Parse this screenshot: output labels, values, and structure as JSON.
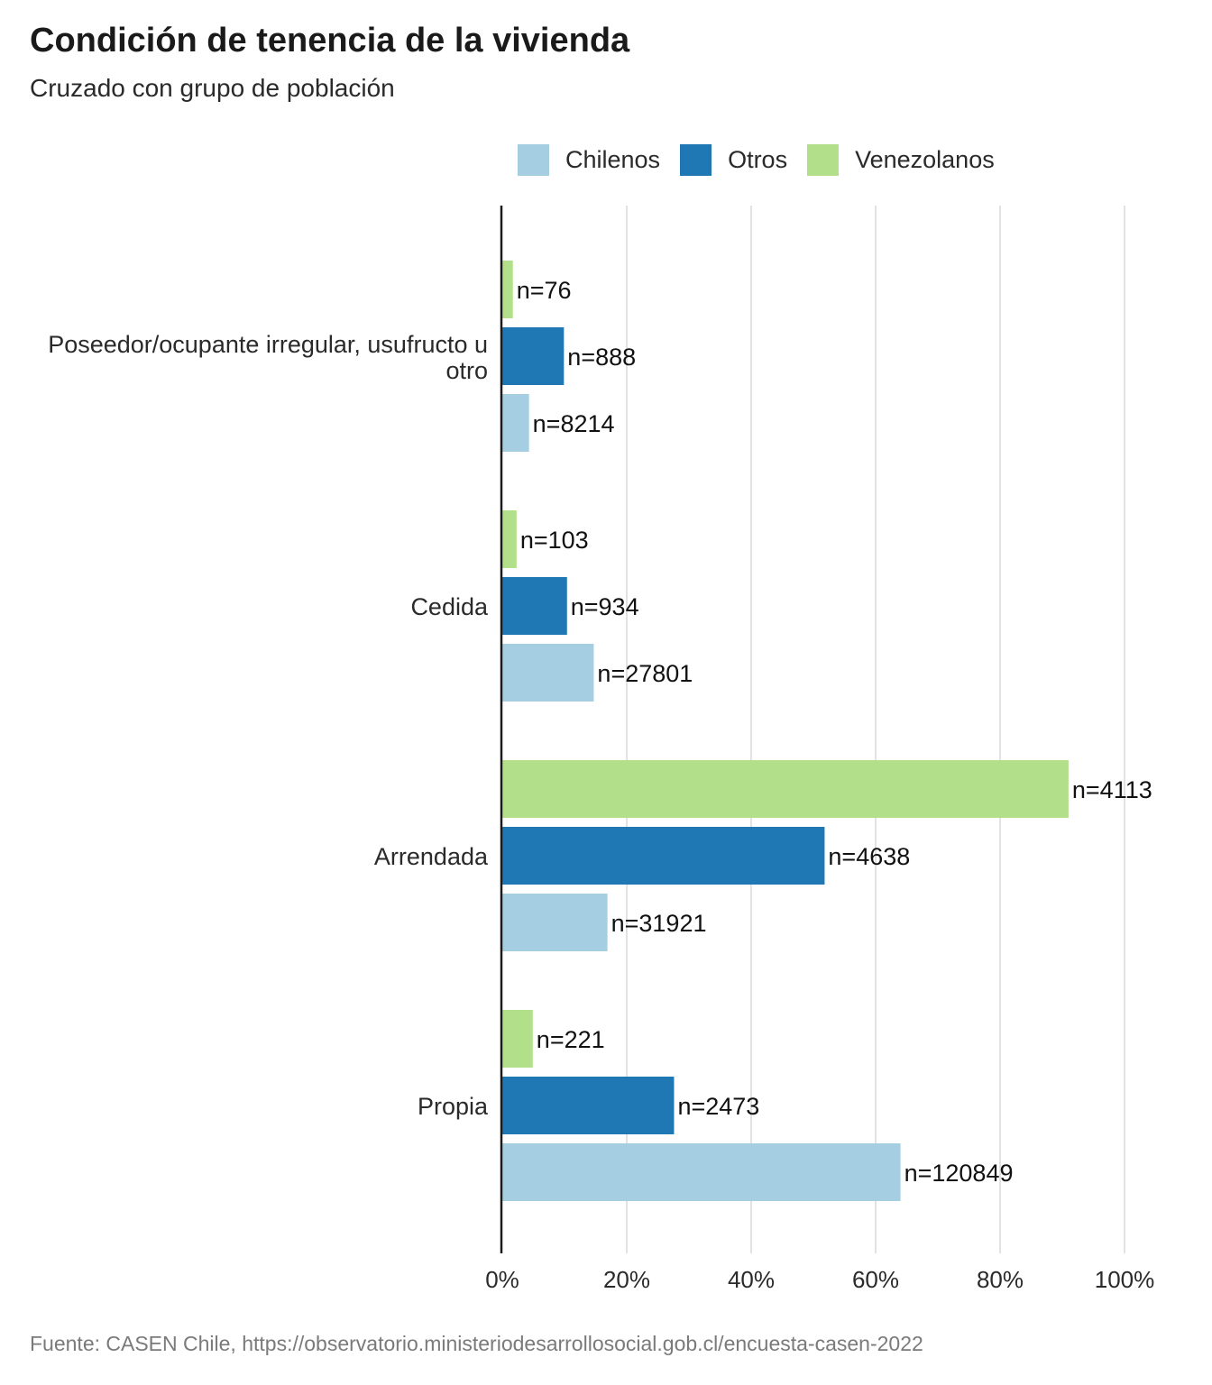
{
  "header": {
    "title": "Condición de tenencia de la vivienda",
    "subtitle": "Cruzado con grupo de población"
  },
  "legend": {
    "items": [
      {
        "label": "Chilenos",
        "color": "#a6cee3"
      },
      {
        "label": "Otros",
        "color": "#1f78b4"
      },
      {
        "label": "Venezolanos",
        "color": "#b2df8a"
      }
    ]
  },
  "footer": {
    "source": "Fuente: CASEN Chile, https://observatorio.ministeriodesarrollosocial.gob.cl/encuesta-casen-2022"
  },
  "chart_data": {
    "type": "bar",
    "orientation": "horizontal",
    "title": "Condición de tenencia de la vivienda",
    "subtitle": "Cruzado con grupo de población",
    "categories": [
      "Poseedor/ocupante irregular, usufructo u otro",
      "Cedida",
      "Arrendada",
      "Propia"
    ],
    "series": [
      {
        "name": "Venezolanos",
        "color": "#b2df8a",
        "values": [
          1.7,
          2.3,
          91.0,
          4.9
        ],
        "labels": [
          "n=76",
          "n=103",
          "n=4113",
          "n=221"
        ]
      },
      {
        "name": "Otros",
        "color": "#1f78b4",
        "values": [
          9.9,
          10.4,
          51.8,
          27.6
        ],
        "labels": [
          "n=888",
          "n=934",
          "n=4638",
          "n=2473"
        ]
      },
      {
        "name": "Chilenos",
        "color": "#a6cee3",
        "values": [
          4.3,
          14.7,
          16.9,
          64.0
        ],
        "labels": [
          "n=8214",
          "n=27801",
          "n=31921",
          "n=120849"
        ]
      }
    ],
    "xlim": [
      0,
      100
    ],
    "xticks": [
      "0%",
      "20%",
      "40%",
      "60%",
      "80%",
      "100%"
    ],
    "grid": "vertical",
    "legend_position": "top"
  }
}
